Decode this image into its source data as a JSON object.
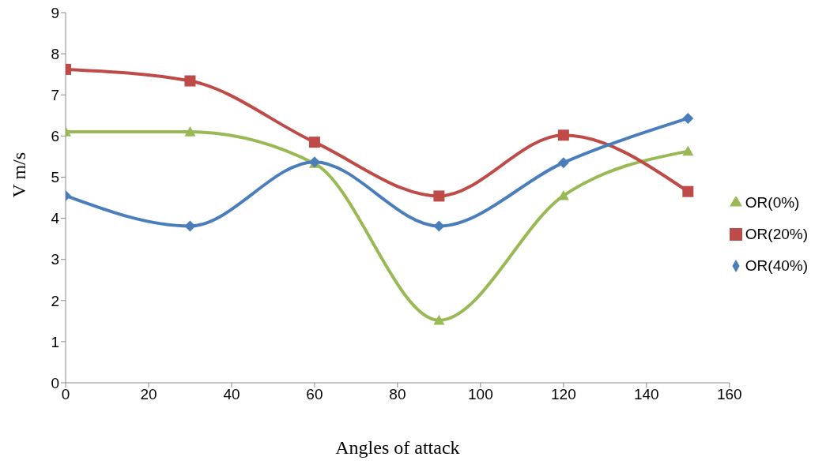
{
  "chart_data": {
    "type": "line",
    "xlabel": "Angles of attack",
    "ylabel": "V  m/s",
    "x": [
      0,
      30,
      60,
      90,
      120,
      150
    ],
    "series": [
      {
        "name": "OR(40%)",
        "color": "#4a7ebb",
        "marker": "diamond",
        "values": [
          4.55,
          3.81,
          5.37,
          3.81,
          5.35,
          6.43
        ]
      },
      {
        "name": "OR(20%)",
        "color": "#be4b48",
        "marker": "square",
        "values": [
          7.62,
          7.34,
          5.85,
          4.54,
          6.02,
          4.65
        ]
      },
      {
        "name": "OR(0%)",
        "color": "#98b954",
        "marker": "triangle",
        "values": [
          6.1,
          6.1,
          5.33,
          1.52,
          4.55,
          5.63
        ]
      }
    ],
    "xlim": [
      0,
      160
    ],
    "xticks": [
      0,
      20,
      40,
      60,
      80,
      100,
      120,
      140,
      160
    ],
    "ylim": [
      0,
      9
    ],
    "yticks": [
      0,
      1,
      2,
      3,
      4,
      5,
      6,
      7,
      8,
      9
    ],
    "grid": false,
    "legend": "right",
    "line_style": "solid"
  }
}
